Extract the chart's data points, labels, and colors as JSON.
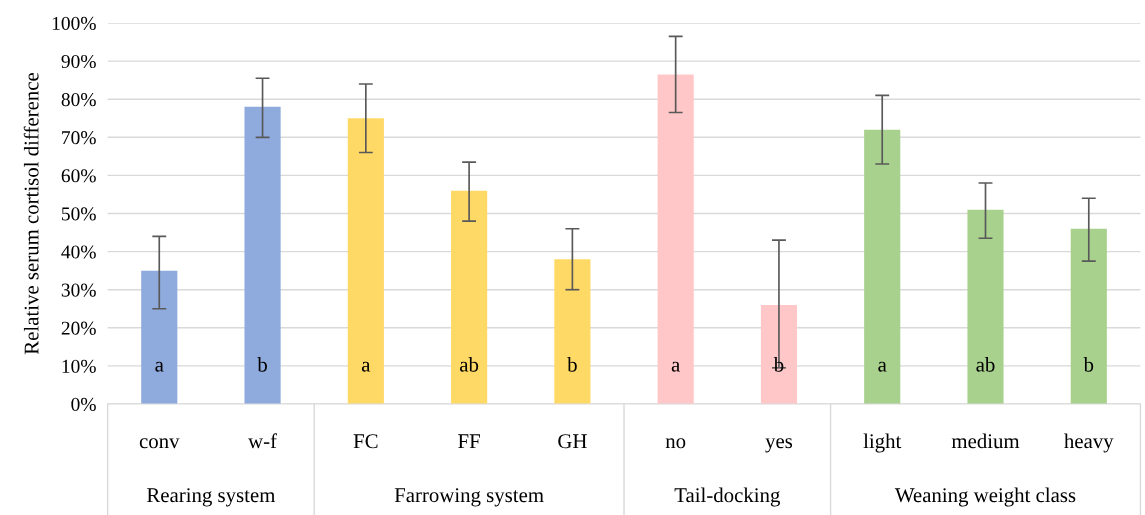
{
  "chart_data": {
    "type": "bar",
    "ylabel": "Relative serum cortisol difference",
    "categories": [
      "conv",
      "w-f",
      "FC",
      "FF",
      "GH",
      "no",
      "yes",
      "light",
      "medium",
      "heavy"
    ],
    "values": [
      35,
      78,
      75,
      56,
      38,
      86.5,
      26,
      72,
      51,
      46
    ],
    "colors": [
      "#8faadc",
      "#8faadc",
      "#ffd966",
      "#ffd966",
      "#ffd966",
      "#ffc7c7",
      "#ffc7c7",
      "#a9d18e",
      "#a9d18e",
      "#a9d18e"
    ],
    "errors": [
      [
        25,
        44
      ],
      [
        70,
        85.5
      ],
      [
        66,
        84
      ],
      [
        48,
        63.5
      ],
      [
        30,
        46
      ],
      [
        76.5,
        96.5
      ],
      [
        9.5,
        43
      ],
      [
        63,
        81
      ],
      [
        43.5,
        58
      ],
      [
        37.5,
        54
      ]
    ],
    "value_labels": [
      "a",
      "b",
      "a",
      "ab",
      "b",
      "a",
      "b",
      "a",
      "ab",
      "b"
    ],
    "ylim": [
      0,
      100
    ],
    "yticks": [
      {
        "value": 0,
        "label": "0%"
      },
      {
        "value": 10,
        "label": "10%"
      },
      {
        "value": 20,
        "label": "20%"
      },
      {
        "value": 30,
        "label": "30%"
      },
      {
        "value": 40,
        "label": "40%"
      },
      {
        "value": 50,
        "label": "50%"
      },
      {
        "value": 60,
        "label": "60%"
      },
      {
        "value": 70,
        "label": "70%"
      },
      {
        "value": 80,
        "label": "80%"
      },
      {
        "value": 90,
        "label": "90%"
      },
      {
        "value": 100,
        "label": "100%"
      }
    ],
    "grid": "y",
    "annotations": [
      "Rearing system",
      "Farrowing system",
      "Tail-docking",
      "Weaning weight class"
    ]
  }
}
